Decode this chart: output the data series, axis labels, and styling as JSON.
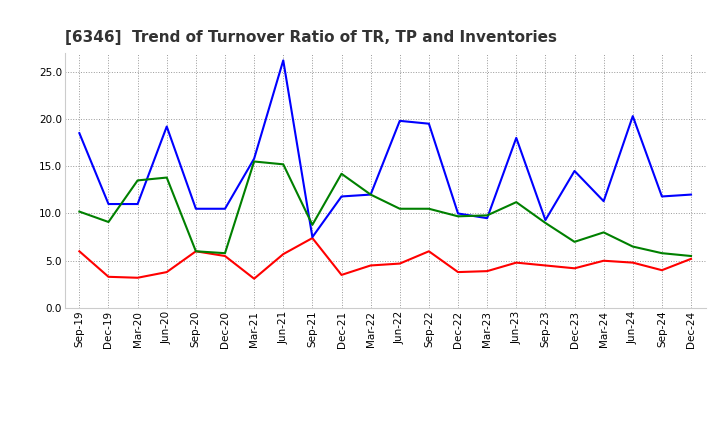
{
  "title": "[6346]  Trend of Turnover Ratio of TR, TP and Inventories",
  "x_labels": [
    "Sep-19",
    "Dec-19",
    "Mar-20",
    "Jun-20",
    "Sep-20",
    "Dec-20",
    "Mar-21",
    "Jun-21",
    "Sep-21",
    "Dec-21",
    "Mar-22",
    "Jun-22",
    "Sep-22",
    "Dec-22",
    "Mar-23",
    "Jun-23",
    "Sep-23",
    "Dec-23",
    "Mar-24",
    "Jun-24",
    "Sep-24",
    "Dec-24"
  ],
  "trade_receivables": [
    6.0,
    3.3,
    3.2,
    3.8,
    6.0,
    5.5,
    3.1,
    5.7,
    7.4,
    3.5,
    4.5,
    4.7,
    6.0,
    3.8,
    3.9,
    4.8,
    4.5,
    4.2,
    5.0,
    4.8,
    4.0,
    5.2
  ],
  "trade_payables": [
    18.5,
    11.0,
    11.0,
    19.2,
    10.5,
    10.5,
    15.8,
    26.2,
    7.5,
    11.8,
    12.0,
    19.8,
    19.5,
    10.0,
    9.5,
    18.0,
    9.3,
    14.5,
    11.3,
    20.3,
    11.8,
    12.0
  ],
  "inventories": [
    10.2,
    9.1,
    13.5,
    13.8,
    6.0,
    5.8,
    15.5,
    15.2,
    8.8,
    14.2,
    12.0,
    10.5,
    10.5,
    9.7,
    9.8,
    11.2,
    9.0,
    7.0,
    8.0,
    6.5,
    5.8,
    5.5
  ],
  "ylim": [
    0.0,
    27.0
  ],
  "yticks": [
    0.0,
    5.0,
    10.0,
    15.0,
    20.0,
    25.0
  ],
  "tr_color": "#ff0000",
  "tp_color": "#0000ff",
  "inv_color": "#008000",
  "bg_color": "#ffffff",
  "grid_color": "#999999",
  "title_fontsize": 11,
  "legend_fontsize": 9,
  "tick_fontsize": 7.5
}
